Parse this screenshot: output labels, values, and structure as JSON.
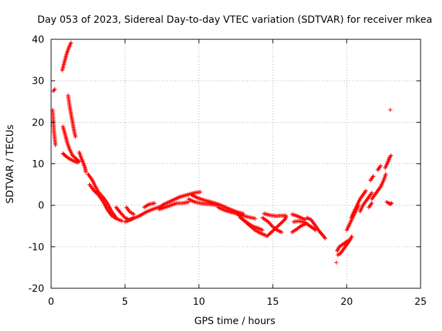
{
  "chart_data": {
    "type": "scatter",
    "title": "Day 053 of 2023, Sidereal Day-to-day VTEC variation (SDTVAR) for receiver mkea",
    "xlabel": "GPS time / hours",
    "ylabel": "SDTVAR / TECUs",
    "xlim": [
      0,
      25
    ],
    "ylim": [
      -20,
      40
    ],
    "xticks": [
      0,
      5,
      10,
      15,
      20,
      25
    ],
    "yticks": [
      -20,
      -10,
      0,
      10,
      20,
      30,
      40
    ],
    "grid": true,
    "marker": "+",
    "colors": {
      "series": "#ff0000",
      "axis": "#000000",
      "grid": "#a0a0a0"
    },
    "series": [
      {
        "name": "SDTVAR",
        "segments": [
          [
            [
              0.15,
              27.5
            ],
            [
              0.25,
              28
            ]
          ],
          [
            [
              0.1,
              23
            ],
            [
              0.15,
              20.5
            ],
            [
              0.2,
              17.5
            ],
            [
              0.3,
              14.5
            ]
          ],
          [
            [
              0.75,
              32.5
            ],
            [
              0.9,
              34.5
            ],
            [
              1.05,
              36.5
            ],
            [
              1.2,
              38
            ],
            [
              1.35,
              39.2
            ]
          ],
          [
            [
              0.8,
              19
            ],
            [
              0.95,
              17
            ],
            [
              1.1,
              15
            ],
            [
              1.25,
              13.5
            ],
            [
              1.45,
              12
            ],
            [
              1.7,
              11.2
            ],
            [
              1.9,
              10.5
            ]
          ],
          [
            [
              0.8,
              12.5
            ],
            [
              1.0,
              11.8
            ],
            [
              1.2,
              11.3
            ],
            [
              1.5,
              10.7
            ],
            [
              1.8,
              10.3
            ]
          ],
          [
            [
              1.15,
              26.5
            ],
            [
              1.25,
              24
            ],
            [
              1.35,
              22
            ],
            [
              1.45,
              20
            ],
            [
              1.55,
              18
            ],
            [
              1.65,
              16.5
            ]
          ],
          [
            [
              1.9,
              12.8
            ],
            [
              2.05,
              11.3
            ],
            [
              2.2,
              10
            ],
            [
              2.3,
              9
            ],
            [
              2.35,
              8
            ]
          ],
          [
            [
              2.5,
              7.5
            ],
            [
              2.8,
              6
            ],
            [
              3.0,
              4.5
            ],
            [
              3.2,
              3.2
            ],
            [
              3.5,
              2
            ],
            [
              3.8,
              0.5
            ],
            [
              4.1,
              -1.5
            ],
            [
              4.4,
              -3
            ]
          ],
          [
            [
              2.6,
              5
            ],
            [
              2.9,
              3.5
            ],
            [
              3.2,
              2.5
            ],
            [
              3.5,
              1
            ],
            [
              3.8,
              -1
            ],
            [
              4.1,
              -2.5
            ],
            [
              4.4,
              -3.2
            ],
            [
              4.8,
              -3.8
            ]
          ],
          [
            [
              4.4,
              -0.5
            ],
            [
              4.7,
              -1.8
            ],
            [
              5.0,
              -3
            ],
            [
              5.3,
              -3.5
            ],
            [
              5.6,
              -3
            ]
          ],
          [
            [
              5.0,
              -4
            ],
            [
              5.5,
              -3.3
            ],
            [
              6.0,
              -2.5
            ],
            [
              6.5,
              -1.5
            ],
            [
              7.0,
              -0.8
            ],
            [
              7.5,
              -0.2
            ]
          ],
          [
            [
              5.1,
              -0.5
            ],
            [
              5.3,
              -1.5
            ],
            [
              5.6,
              -2.2
            ]
          ],
          [
            [
              6.3,
              -0.5
            ],
            [
              6.6,
              0.2
            ],
            [
              7.0,
              0.5
            ]
          ],
          [
            [
              7.5,
              0
            ],
            [
              7.8,
              0.5
            ],
            [
              8.1,
              1
            ],
            [
              8.4,
              1.5
            ],
            [
              8.7,
              2
            ],
            [
              9.0,
              2.3
            ],
            [
              9.3,
              2.6
            ],
            [
              9.7,
              3
            ],
            [
              10.1,
              3.2
            ]
          ],
          [
            [
              7.3,
              -1
            ],
            [
              7.7,
              -0.5
            ],
            [
              8.1,
              0
            ],
            [
              8.5,
              0.5
            ],
            [
              8.9,
              0.5
            ],
            [
              9.3,
              0.8
            ]
          ],
          [
            [
              9.3,
              1.5
            ],
            [
              9.7,
              0.8
            ],
            [
              10.1,
              0.5
            ],
            [
              10.5,
              0.3
            ],
            [
              10.9,
              0.2
            ],
            [
              11.3,
              0
            ]
          ],
          [
            [
              9.5,
              2.5
            ],
            [
              9.9,
              1.8
            ],
            [
              10.3,
              1.3
            ],
            [
              10.7,
              0.9
            ],
            [
              11.1,
              0.5
            ],
            [
              11.5,
              0
            ],
            [
              12.0,
              -0.8
            ],
            [
              12.5,
              -1.5
            ],
            [
              13.0,
              -2
            ]
          ],
          [
            [
              11.3,
              -0.5
            ],
            [
              11.8,
              -1.3
            ],
            [
              12.3,
              -1.8
            ],
            [
              12.8,
              -2.3
            ],
            [
              13.3,
              -2.8
            ],
            [
              13.8,
              -3.2
            ]
          ],
          [
            [
              12.6,
              -2
            ],
            [
              13.0,
              -3.5
            ],
            [
              13.4,
              -4.8
            ],
            [
              13.8,
              -6
            ],
            [
              14.2,
              -6.8
            ],
            [
              14.5,
              -7.2
            ]
          ],
          [
            [
              12.8,
              -3
            ],
            [
              13.2,
              -4
            ],
            [
              13.6,
              -5
            ],
            [
              14.0,
              -5.5
            ],
            [
              14.3,
              -6
            ]
          ],
          [
            [
              14.3,
              -3
            ],
            [
              14.7,
              -4
            ],
            [
              15.0,
              -5.2
            ],
            [
              15.3,
              -6
            ],
            [
              15.6,
              -6.5
            ]
          ],
          [
            [
              14.6,
              -7.5
            ],
            [
              14.9,
              -6.5
            ],
            [
              15.2,
              -5.5
            ],
            [
              15.5,
              -4.5
            ],
            [
              15.8,
              -3.5
            ],
            [
              15.9,
              -2.8
            ]
          ],
          [
            [
              14.4,
              -2
            ],
            [
              14.8,
              -2.4
            ],
            [
              15.2,
              -2.6
            ],
            [
              15.6,
              -2.5
            ],
            [
              15.9,
              -2.5
            ]
          ],
          [
            [
              16.3,
              -2.2
            ],
            [
              16.6,
              -2.5
            ],
            [
              16.9,
              -3
            ],
            [
              17.2,
              -3.5
            ]
          ],
          [
            [
              16.4,
              -4
            ],
            [
              16.8,
              -3.8
            ],
            [
              17.2,
              -4.2
            ],
            [
              17.6,
              -5.2
            ],
            [
              17.9,
              -6
            ]
          ],
          [
            [
              16.3,
              -6.5
            ],
            [
              16.6,
              -5.8
            ],
            [
              16.9,
              -5
            ],
            [
              17.2,
              -4.5
            ]
          ],
          [
            [
              17.3,
              -3
            ],
            [
              17.6,
              -3.5
            ],
            [
              17.9,
              -5
            ],
            [
              18.2,
              -6.5
            ]
          ],
          [
            [
              18.2,
              -6.5
            ],
            [
              18.4,
              -7.3
            ],
            [
              18.55,
              -8
            ]
          ],
          [
            [
              19.3,
              -13.8
            ]
          ],
          [
            [
              19.35,
              -11
            ],
            [
              19.5,
              -10
            ],
            [
              19.7,
              -9.5
            ],
            [
              19.9,
              -9
            ],
            [
              20.1,
              -8.5
            ]
          ],
          [
            [
              19.4,
              -12
            ],
            [
              19.6,
              -11.5
            ],
            [
              19.8,
              -10.5
            ],
            [
              20.0,
              -9.5
            ],
            [
              20.2,
              -8.5
            ],
            [
              20.35,
              -7.5
            ]
          ],
          [
            [
              20.0,
              -6
            ],
            [
              20.2,
              -4.5
            ],
            [
              20.4,
              -3
            ],
            [
              20.6,
              -1.5
            ],
            [
              20.8,
              0
            ]
          ],
          [
            [
              20.3,
              -3
            ],
            [
              20.5,
              -1.5
            ],
            [
              20.7,
              0
            ],
            [
              20.9,
              1.5
            ],
            [
              21.1,
              2.5
            ],
            [
              21.3,
              3.5
            ]
          ],
          [
            [
              20.9,
              -1.5
            ],
            [
              21.1,
              0
            ],
            [
              21.3,
              1
            ],
            [
              21.5,
              2
            ],
            [
              21.7,
              3
            ]
          ],
          [
            [
              21.5,
              -0.5
            ],
            [
              21.7,
              0.5
            ]
          ],
          [
            [
              21.6,
              6
            ],
            [
              21.8,
              7
            ]
          ],
          [
            [
              21.7,
              1.5
            ],
            [
              21.9,
              2.5
            ],
            [
              22.1,
              3.5
            ],
            [
              22.3,
              4.5
            ],
            [
              22.5,
              6
            ],
            [
              22.65,
              7.5
            ]
          ],
          [
            [
              22.1,
              8.5
            ],
            [
              22.3,
              9.5
            ]
          ],
          [
            [
              22.6,
              9
            ],
            [
              22.8,
              10.5
            ],
            [
              22.9,
              11.5
            ],
            [
              23.0,
              12
            ]
          ],
          [
            [
              22.7,
              0.8
            ],
            [
              22.85,
              0.5
            ],
            [
              22.95,
              0.3
            ],
            [
              23.05,
              0.5
            ]
          ],
          [
            [
              22.95,
              23
            ]
          ]
        ]
      }
    ]
  }
}
